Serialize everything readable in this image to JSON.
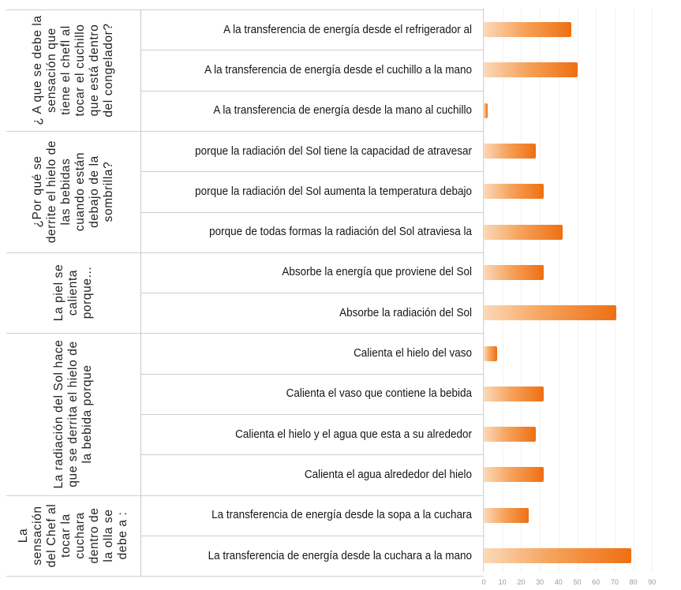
{
  "chart_data": {
    "type": "bar",
    "orientation": "horizontal",
    "xlim": [
      0,
      100
    ],
    "grid": true,
    "legend": "none",
    "color": "#ef7a1e",
    "x_ticks": [
      "0",
      "10",
      "20",
      "30",
      "40",
      "50",
      "60",
      "70",
      "80",
      "90"
    ],
    "groups": [
      {
        "label": "¿ A que se debe la sensación que tiene el chefl al tocar el cuchillo que está dentro del congelador?",
        "items": [
          {
            "label": "A la transferencia de energía desde el refrigerador al",
            "value": 47
          },
          {
            "label": "A la transferencia de energía desde el cuchillo a la mano",
            "value": 50
          },
          {
            "label": "A la transferencia de energía desde la mano al cuchillo",
            "value": 2
          }
        ]
      },
      {
        "label": "¿Por qué se derrite el hielo de las bebidas cuando están debajo de la sombrilla?",
        "items": [
          {
            "label": "porque la radiación del Sol tiene la capacidad de atravesar",
            "value": 28
          },
          {
            "label": "porque la radiación del Sol aumenta la temperatura debajo",
            "value": 32
          },
          {
            "label": "porque de todas formas la radiación del Sol atraviesa la",
            "value": 42
          }
        ]
      },
      {
        "label": "La piel se calienta porque...",
        "items": [
          {
            "label": "Absorbe la energía que proviene del Sol",
            "value": 32
          },
          {
            "label": "Absorbe la radiación del Sol",
            "value": 71
          }
        ]
      },
      {
        "label": "La radiación del Sol hace que se derrita el hielo de la bebida porque",
        "items": [
          {
            "label": "Calienta el hielo del vaso",
            "value": 7
          },
          {
            "label": "Calienta el vaso que contiene la bebida",
            "value": 32
          },
          {
            "label": "Calienta el hielo y el agua que esta a su alrededor",
            "value": 28
          },
          {
            "label": "Calienta el agua alrededor del hielo",
            "value": 32
          }
        ]
      },
      {
        "label": "La sensación del Chef al tocar la cuchara dentro de la olla se debe a :",
        "items": [
          {
            "label": "La transferencia de energía desde la sopa a la cuchara",
            "value": 24
          },
          {
            "label": "La transferencia de energía desde la cuchara a la mano",
            "value": 79
          }
        ]
      }
    ]
  }
}
